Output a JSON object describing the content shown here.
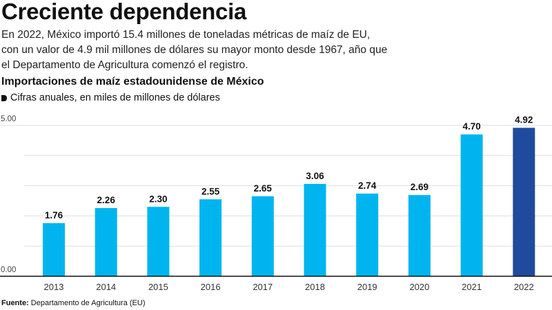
{
  "header": {
    "title": "Creciente dependencia",
    "lead": "En 2022, México importó 15.4 millones de toneladas métricas de maíz de EU, con un valor de 4.9 mil millones de dólares su mayor monto desde 1967, año que el Departamento de Agricultura comenzó el registro."
  },
  "chart_data": {
    "type": "bar",
    "title": "Importaciones de maíz estadounidense de México",
    "subtitle": "Cifras anuales, en miles de millones de dólares",
    "xlabel": "",
    "ylabel": "",
    "categories": [
      "2013",
      "2014",
      "2015",
      "2016",
      "2017",
      "2018",
      "2019",
      "2020",
      "2021",
      "2022"
    ],
    "values": [
      1.76,
      2.26,
      2.3,
      2.55,
      2.65,
      3.06,
      2.74,
      2.69,
      4.7,
      4.92
    ],
    "value_labels": [
      "1.76",
      "2.26",
      "2.30",
      "2.55",
      "2.65",
      "3.06",
      "2.74",
      "2.69",
      "4.70",
      "4.92"
    ],
    "ylim": [
      0,
      5
    ],
    "y_ticks": [
      0,
      1,
      2,
      3,
      4,
      5
    ],
    "y_tick_labels": [
      "0.00",
      "",
      "",
      "",
      "",
      "5.00"
    ],
    "grid": true,
    "colors": {
      "default": "#00b5ef",
      "highlight": "#1f4b9e",
      "highlight_category": "2022",
      "grid": "#dddddd",
      "axis": "#111111"
    }
  },
  "footer": {
    "source_label": "Fuente:",
    "source_text": " Departamento de Agricultura (EU)"
  }
}
